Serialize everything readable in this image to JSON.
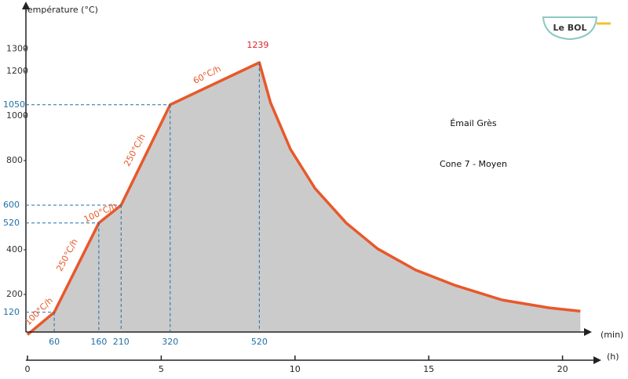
{
  "chart_data": {
    "type": "area",
    "y_label": "Température (°C)",
    "x_label": "(min)",
    "x2_label": "(h)",
    "title": "Émail Grès",
    "subtitle": "Cone 7 - Moyen",
    "x": [
      0,
      60,
      160,
      210,
      320,
      520,
      545,
      590,
      645,
      715,
      785,
      870,
      960,
      1065,
      1170,
      1240
    ],
    "values": [
      20,
      120,
      520,
      600,
      1050,
      1239,
      1060,
      850,
      675,
      520,
      405,
      310,
      240,
      175,
      140,
      125
    ],
    "line_color": "#e8582a",
    "area_color": "#cbcbcb",
    "ylim": [
      0,
      1400
    ],
    "yticks": [
      200,
      400,
      800,
      1000,
      1200,
      1300
    ],
    "marked_yticks": [
      120,
      520,
      600,
      1050
    ],
    "marked_xticks": [
      60,
      160,
      210,
      320,
      520
    ],
    "marked_color": "#1f6fa8",
    "xlim": [
      0,
      1260
    ],
    "x2ticks": [
      0,
      5,
      10,
      15,
      20
    ],
    "peak_label": "1239",
    "peak_color": "#d8232a",
    "annotations": [
      "100°C/h",
      "250°C/h",
      "100°C/h",
      "250°C/h",
      "60°C/h"
    ]
  },
  "logo": {
    "text": "Le BOL"
  }
}
